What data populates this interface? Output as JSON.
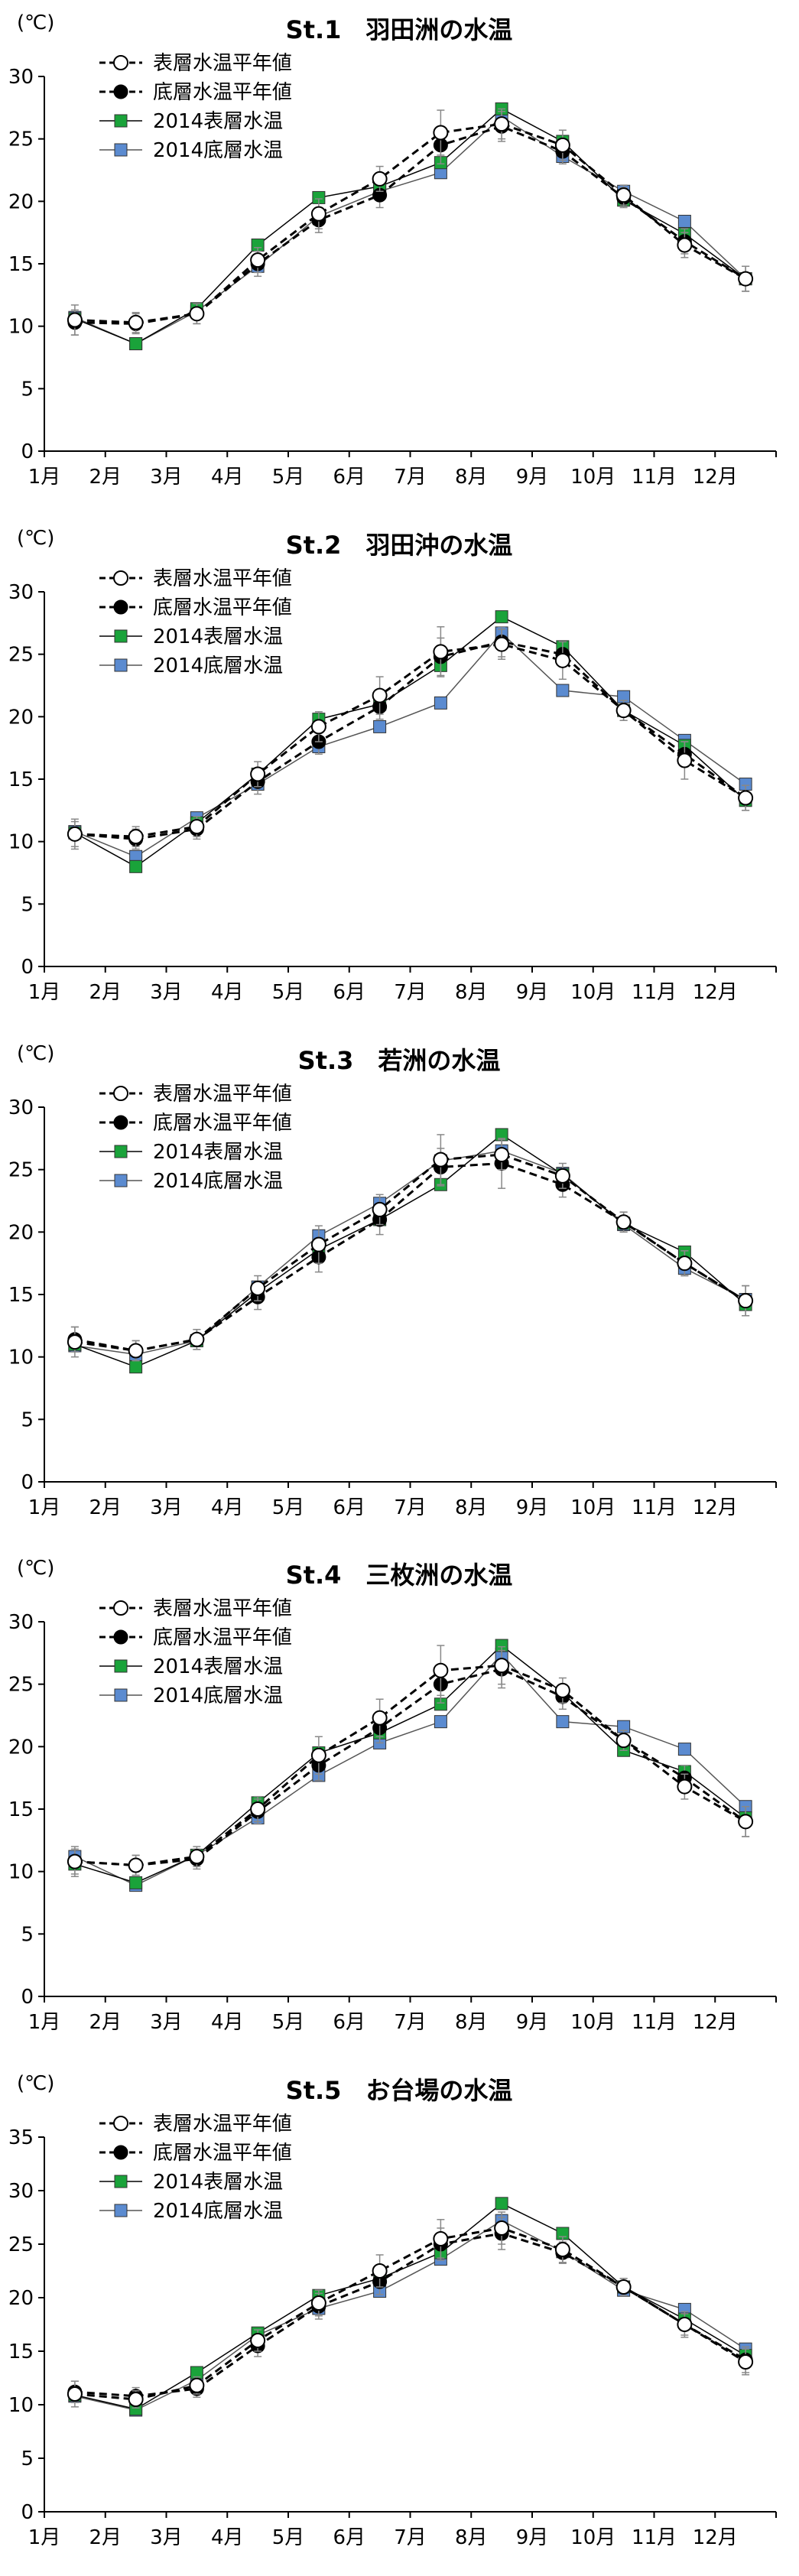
{
  "shared": {
    "months": [
      "1月",
      "2月",
      "3月",
      "4月",
      "5月",
      "6月",
      "7月",
      "8月",
      "9月",
      "10月",
      "11月",
      "12月"
    ],
    "unit": "(℃)",
    "legend": [
      "表層水温平年値",
      "底層水温平年値",
      "2014表層水温",
      "2014底層水温"
    ],
    "colors": {
      "surface_2014": "#1aa33a",
      "bottom_2014": "#5b8bd0",
      "normal": "#000000"
    }
  },
  "chart_data": [
    {
      "type": "line",
      "title": "St.1　羽田洲の水温",
      "ylim": [
        0,
        30
      ],
      "yticks": [
        0,
        5,
        10,
        15,
        20,
        25,
        30
      ],
      "categories": [
        "1月",
        "2月",
        "3月",
        "4月",
        "5月",
        "6月",
        "7月",
        "8月",
        "9月",
        "10月",
        "11月",
        "12月"
      ],
      "series": [
        {
          "name": "表層水温平年値",
          "values": [
            10.5,
            10.3,
            11.0,
            15.3,
            19.0,
            21.8,
            25.5,
            26.2,
            24.5,
            20.5,
            16.5,
            13.8
          ],
          "error": [
            1.2,
            0.8,
            0.8,
            1.0,
            1.2,
            1.0,
            1.8,
            1.2,
            1.2,
            0.8,
            1.0,
            1.0
          ]
        },
        {
          "name": "底層水温平年値",
          "values": [
            10.3,
            10.2,
            11.0,
            15.0,
            18.5,
            20.5,
            24.5,
            26.0,
            24.0,
            20.3,
            16.8,
            13.8
          ],
          "error": [
            1.0,
            0.8,
            0.8,
            1.0,
            1.0,
            1.0,
            1.5,
            1.2,
            1.0,
            0.8,
            1.0,
            1.0
          ]
        },
        {
          "name": "2014表層水温",
          "values": [
            10.6,
            8.6,
            11.4,
            16.5,
            20.3,
            21.2,
            23.1,
            27.4,
            24.8,
            20.1,
            17.4,
            13.8
          ]
        },
        {
          "name": "2014底層水温",
          "values": [
            10.7,
            8.6,
            11.2,
            14.8,
            18.8,
            20.8,
            22.3,
            26.8,
            23.6,
            20.8,
            18.4,
            13.8
          ]
        }
      ]
    },
    {
      "type": "line",
      "title": "St.2　羽田沖の水温",
      "ylim": [
        0,
        30
      ],
      "yticks": [
        0,
        5,
        10,
        15,
        20,
        25,
        30
      ],
      "categories": [
        "1月",
        "2月",
        "3月",
        "4月",
        "5月",
        "6月",
        "7月",
        "8月",
        "9月",
        "10月",
        "11月",
        "12月"
      ],
      "series": [
        {
          "name": "表層水温平年値",
          "values": [
            10.6,
            10.4,
            11.2,
            15.4,
            19.2,
            21.7,
            25.2,
            25.8,
            24.5,
            20.5,
            16.5,
            13.5
          ],
          "error": [
            1.2,
            0.8,
            0.8,
            1.0,
            1.2,
            1.5,
            2.0,
            1.2,
            1.5,
            0.8,
            1.5,
            1.0
          ]
        },
        {
          "name": "底層水温平年値",
          "values": [
            10.6,
            10.2,
            11.0,
            14.8,
            18.0,
            20.8,
            24.8,
            26.0,
            25.0,
            20.5,
            17.0,
            13.5
          ],
          "error": [
            1.0,
            0.8,
            0.8,
            1.0,
            1.0,
            1.0,
            1.5,
            1.2,
            1.0,
            0.8,
            1.0,
            1.0
          ]
        },
        {
          "name": "2014表層水温",
          "values": [
            10.7,
            8.0,
            11.5,
            15.4,
            19.8,
            21.0,
            24.1,
            28.0,
            25.6,
            20.5,
            17.7,
            13.3
          ]
        },
        {
          "name": "2014底層水温",
          "values": [
            10.8,
            8.8,
            11.9,
            14.6,
            17.6,
            19.2,
            21.1,
            26.7,
            22.1,
            21.6,
            18.1,
            14.6
          ]
        }
      ]
    },
    {
      "type": "line",
      "title": "St.3　若洲の水温",
      "ylim": [
        0,
        30
      ],
      "yticks": [
        0,
        5,
        10,
        15,
        20,
        25,
        30
      ],
      "categories": [
        "1月",
        "2月",
        "3月",
        "4月",
        "5月",
        "6月",
        "7月",
        "8月",
        "9月",
        "10月",
        "11月",
        "12月"
      ],
      "series": [
        {
          "name": "表層水温平年値",
          "values": [
            11.2,
            10.5,
            11.4,
            15.5,
            19.0,
            21.8,
            25.8,
            26.2,
            24.5,
            20.8,
            17.5,
            14.5
          ],
          "error": [
            1.2,
            0.8,
            0.8,
            1.0,
            1.5,
            1.2,
            2.0,
            1.2,
            1.0,
            0.8,
            1.0,
            1.2
          ]
        },
        {
          "name": "底層水温平年値",
          "values": [
            11.4,
            10.5,
            11.4,
            14.8,
            18.0,
            21.0,
            25.2,
            25.5,
            23.8,
            20.8,
            17.5,
            14.5
          ],
          "error": [
            1.0,
            0.8,
            0.8,
            1.0,
            1.2,
            1.2,
            1.5,
            2.0,
            1.0,
            0.8,
            1.0,
            1.2
          ]
        },
        {
          "name": "2014表層水温",
          "values": [
            11.0,
            9.2,
            11.3,
            15.2,
            18.6,
            21.0,
            23.8,
            27.8,
            24.6,
            20.7,
            18.4,
            14.2
          ]
        },
        {
          "name": "2014底層水温",
          "values": [
            10.9,
            10.2,
            11.3,
            15.6,
            19.7,
            22.3,
            25.7,
            26.5,
            24.7,
            20.6,
            17.1,
            14.6
          ]
        }
      ]
    },
    {
      "type": "line",
      "title": "St.4　三枚洲の水温",
      "ylim": [
        0,
        30
      ],
      "yticks": [
        0,
        5,
        10,
        15,
        20,
        25,
        30
      ],
      "categories": [
        "1月",
        "2月",
        "3月",
        "4月",
        "5月",
        "6月",
        "7月",
        "8月",
        "9月",
        "10月",
        "11月",
        "12月"
      ],
      "series": [
        {
          "name": "表層水温平年値",
          "values": [
            10.8,
            10.5,
            11.2,
            15.0,
            19.3,
            22.3,
            26.1,
            26.5,
            24.5,
            20.5,
            16.8,
            14.0
          ],
          "error": [
            1.2,
            0.8,
            0.8,
            1.0,
            1.5,
            1.5,
            2.0,
            1.5,
            1.0,
            0.8,
            1.0,
            1.2
          ]
        },
        {
          "name": "底層水温平年値",
          "values": [
            10.8,
            10.5,
            11.0,
            14.8,
            18.5,
            21.5,
            25.0,
            26.2,
            24.0,
            20.5,
            17.5,
            14.0
          ],
          "error": [
            1.0,
            0.8,
            0.8,
            1.0,
            1.2,
            1.2,
            1.5,
            1.5,
            1.0,
            0.8,
            1.0,
            1.2
          ]
        },
        {
          "name": "2014表層水温",
          "values": [
            10.6,
            9.1,
            11.3,
            15.5,
            19.5,
            21.1,
            23.4,
            28.1,
            24.3,
            19.7,
            18.0,
            14.3
          ]
        },
        {
          "name": "2014底層水温",
          "values": [
            11.2,
            8.9,
            11.3,
            14.3,
            17.7,
            20.3,
            22.0,
            27.4,
            22.0,
            21.6,
            19.8,
            15.2
          ]
        }
      ]
    },
    {
      "type": "line",
      "title": "St.5　お台場の水温",
      "ylim": [
        0,
        35
      ],
      "yticks": [
        0,
        5,
        10,
        15,
        20,
        25,
        30,
        35
      ],
      "categories": [
        "1月",
        "2月",
        "3月",
        "4月",
        "5月",
        "6月",
        "7月",
        "8月",
        "9月",
        "10月",
        "11月",
        "12月"
      ],
      "series": [
        {
          "name": "表層水温平年値",
          "values": [
            11.0,
            10.5,
            11.8,
            16.0,
            19.5,
            22.5,
            25.5,
            26.5,
            24.5,
            21.0,
            17.5,
            14.0
          ],
          "error": [
            1.2,
            0.8,
            0.8,
            1.0,
            1.2,
            1.5,
            1.8,
            1.5,
            1.2,
            0.8,
            1.2,
            1.2
          ]
        },
        {
          "name": "底層水温平年値",
          "values": [
            11.2,
            10.8,
            11.5,
            15.5,
            19.2,
            21.5,
            25.0,
            26.0,
            24.2,
            21.0,
            17.5,
            14.2
          ],
          "error": [
            1.0,
            0.8,
            0.8,
            1.0,
            1.2,
            1.2,
            1.5,
            1.5,
            1.0,
            0.8,
            1.0,
            1.2
          ]
        },
        {
          "name": "2014表層水温",
          "values": [
            10.9,
            9.6,
            13.0,
            16.7,
            20.2,
            21.8,
            24.2,
            28.8,
            26.0,
            21.0,
            18.0,
            14.6
          ]
        },
        {
          "name": "2014底層水温",
          "values": [
            10.8,
            9.5,
            12.3,
            16.5,
            19.0,
            20.6,
            23.6,
            27.2,
            24.3,
            20.7,
            18.9,
            15.2
          ]
        }
      ]
    }
  ]
}
